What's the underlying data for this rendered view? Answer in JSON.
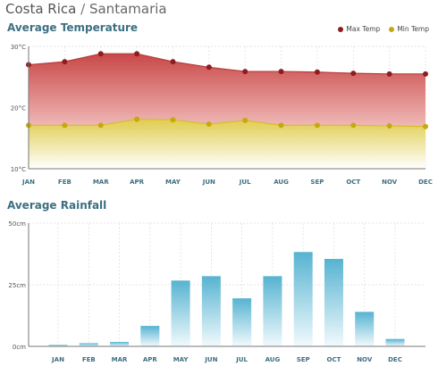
{
  "header": {
    "country": "Costa Rica",
    "separator": "/",
    "city": "Santamaria"
  },
  "colors": {
    "max": "#8f1d1f",
    "min": "#c6a80c",
    "bar_top": "#5bb6d3",
    "title": "#3d6f82"
  },
  "chart_data": [
    {
      "type": "area",
      "title": "Average Temperature",
      "categories": [
        "JAN",
        "FEB",
        "MAR",
        "APR",
        "MAY",
        "JUN",
        "JUL",
        "AUG",
        "SEP",
        "OCT",
        "NOV",
        "DEC"
      ],
      "series": [
        {
          "name": "Max Temp",
          "values": [
            27,
            27.5,
            28.8,
            28.8,
            27.5,
            26.6,
            25.9,
            25.9,
            25.8,
            25.6,
            25.5,
            25.5
          ]
        },
        {
          "name": "Min Temp",
          "values": [
            17.1,
            17.1,
            17.1,
            18.1,
            18.0,
            17.3,
            17.9,
            17.1,
            17.1,
            17.1,
            17.0,
            16.9
          ]
        }
      ],
      "yticks": [
        "10°C",
        "20°C",
        "30°C"
      ],
      "ylim": [
        10,
        30
      ],
      "grid": true,
      "legend": "top-right"
    },
    {
      "type": "bar",
      "title": "Average Rainfall",
      "categories": [
        "JAN",
        "FEB",
        "MAR",
        "APR",
        "MAY",
        "JUN",
        "JUL",
        "AUG",
        "SEP",
        "OCT",
        "NOV",
        "DEC"
      ],
      "values": [
        0.6,
        1.3,
        1.8,
        8.3,
        26.7,
        28.5,
        19.5,
        28.5,
        38.3,
        35.5,
        14.0,
        3.0
      ],
      "yticks": [
        "0cm",
        "25cm",
        "50cm"
      ],
      "ylim": [
        0,
        50
      ],
      "grid": true
    }
  ]
}
